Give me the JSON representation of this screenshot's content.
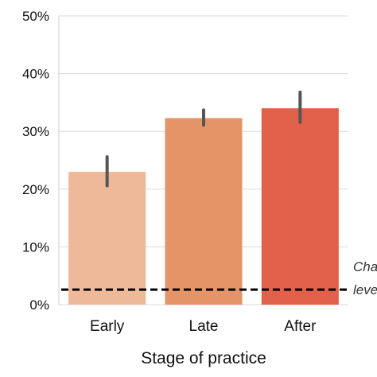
{
  "chart_data": {
    "type": "bar",
    "title": "",
    "xlabel": "Stage of practice",
    "ylabel": "",
    "categories": [
      "Early",
      "Late",
      "After"
    ],
    "values": [
      23,
      32.3,
      34
    ],
    "error_low": [
      20.6,
      31.1,
      31.6
    ],
    "error_high": [
      25.6,
      33.7,
      36.8
    ],
    "colors": [
      "#eeb999",
      "#e59467",
      "#e1604a"
    ],
    "ylim": [
      0,
      50
    ],
    "yticks": [
      0,
      10,
      20,
      30,
      40,
      50
    ],
    "ytick_labels": [
      "0%",
      "10%",
      "20%",
      "30%",
      "40%",
      "50%"
    ],
    "grid": true,
    "reference_line": {
      "value": 2.6,
      "label_line1": "Cha",
      "label_line2": "leve"
    }
  }
}
